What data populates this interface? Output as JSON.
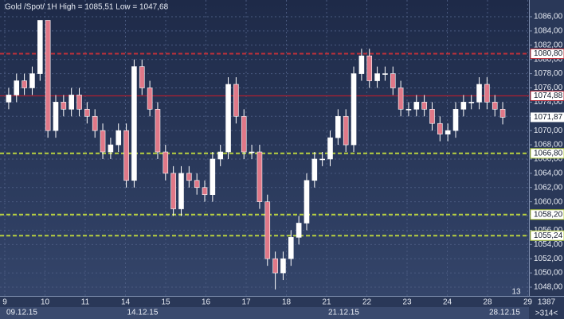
{
  "chart_data": {
    "type": "candlestick",
    "title": "Gold /Spot/ 1H High = 1085,51 Low = 1047,68",
    "series": [
      {
        "name": "Gold",
        "up_color": "#ffffff",
        "down_color": "#e07888",
        "open": [
          1074,
          1075,
          1077,
          1076,
          1078,
          1085.5,
          1070,
          1074,
          1073,
          1075,
          1073,
          1072,
          1070,
          1067,
          1068,
          1070,
          1063,
          1079,
          1076,
          1073,
          1067,
          1064,
          1059,
          1064,
          1063,
          1062,
          1061,
          1066,
          1067,
          1076.5,
          1072,
          1067,
          1067,
          1060,
          1052,
          1050,
          1052,
          1055,
          1057,
          1063,
          1066,
          1066,
          1069,
          1072,
          1068,
          1078,
          1080.5,
          1077,
          1078,
          1078,
          1076,
          1073,
          1073,
          1074,
          1073,
          1071,
          1069.5,
          1070,
          1073,
          1074,
          1074,
          1076.5,
          1074,
          1073
        ],
        "high": [
          1076,
          1078,
          1078,
          1079,
          1085.51,
          1085.51,
          1075,
          1075,
          1076,
          1076,
          1074,
          1073,
          1071,
          1069,
          1071,
          1071,
          1080,
          1080,
          1077,
          1074,
          1068,
          1065,
          1065,
          1065,
          1064,
          1063,
          1067,
          1068,
          1077.5,
          1077.5,
          1073,
          1068,
          1068,
          1061,
          1053,
          1053,
          1056,
          1058,
          1064,
          1067,
          1067,
          1070,
          1073,
          1073,
          1079,
          1081.5,
          1081.5,
          1079,
          1079,
          1079,
          1077,
          1074,
          1075,
          1075,
          1074,
          1072,
          1071,
          1074,
          1075,
          1075,
          1077.5,
          1077.5,
          1075,
          1074
        ],
        "low": [
          1073,
          1074,
          1075,
          1075,
          1077,
          1069,
          1069,
          1072,
          1072,
          1072,
          1071,
          1069,
          1066,
          1066,
          1067,
          1062,
          1062,
          1075,
          1072,
          1066,
          1063,
          1058,
          1058,
          1062,
          1061,
          1060,
          1060,
          1065,
          1066,
          1071,
          1066,
          1066,
          1059,
          1051,
          1047.68,
          1049,
          1051,
          1054,
          1056,
          1062,
          1065,
          1065,
          1068,
          1067,
          1067,
          1077,
          1076,
          1076,
          1077,
          1075,
          1072,
          1072,
          1072,
          1072,
          1070,
          1068.5,
          1068.5,
          1069,
          1072,
          1073,
          1073,
          1073,
          1072,
          1070.87
        ],
        "close": [
          1075,
          1077,
          1076,
          1078,
          1085.5,
          1070,
          1074,
          1073,
          1075,
          1073,
          1072,
          1070,
          1067,
          1068,
          1070,
          1063,
          1079,
          1076,
          1073,
          1067,
          1064,
          1059,
          1064,
          1063,
          1062,
          1061,
          1066,
          1067,
          1076.5,
          1072,
          1067,
          1067,
          1060,
          1052,
          1050,
          1052,
          1055,
          1057,
          1063,
          1066,
          1066,
          1069,
          1072,
          1068,
          1078,
          1080.5,
          1077,
          1078,
          1078,
          1076,
          1073,
          1073,
          1074,
          1073,
          1071,
          1069.5,
          1070,
          1073,
          1074,
          1074,
          1076.5,
          1074,
          1073,
          1071.87
        ]
      }
    ],
    "ylim": [
      1046.77,
      1088.35
    ],
    "yticks": [
      {
        "value": 1048,
        "label": "1048,00"
      },
      {
        "value": 1050,
        "label": "1050,00"
      },
      {
        "value": 1052,
        "label": "1052,00"
      },
      {
        "value": 1054,
        "label": "1054,00"
      },
      {
        "value": 1056,
        "label": "1056,00"
      },
      {
        "value": 1058,
        "label": "1058,00"
      },
      {
        "value": 1060,
        "label": "1060,00"
      },
      {
        "value": 1062,
        "label": "1062,00"
      },
      {
        "value": 1064,
        "label": "1064,00"
      },
      {
        "value": 1066,
        "label": "1066,00"
      },
      {
        "value": 1068,
        "label": "1068,00"
      },
      {
        "value": 1070,
        "label": "1070,00"
      },
      {
        "value": 1072,
        "label": "1072,00"
      },
      {
        "value": 1074,
        "label": "1074,00"
      },
      {
        "value": 1076,
        "label": "1076,00"
      },
      {
        "value": 1078,
        "label": "1078,00"
      },
      {
        "value": 1080,
        "label": "1080,00"
      },
      {
        "value": 1082,
        "label": "1082,00"
      },
      {
        "value": 1084,
        "label": "1084,00"
      },
      {
        "value": 1086,
        "label": "1086,00"
      }
    ],
    "levels": [
      {
        "value": 1080.8,
        "label": "1080,80",
        "color": "#c0303a",
        "dashed": true
      },
      {
        "value": 1074.88,
        "label": "1074,88",
        "color": "#b02030",
        "dashed": false
      },
      {
        "value": 1066.8,
        "label": "1066,80",
        "color": "#b8d040",
        "dashed": true
      },
      {
        "value": 1058.2,
        "label": "1058,20",
        "color": "#b8d040",
        "dashed": true
      },
      {
        "value": 1055.24,
        "label": "1055,24",
        "color": "#b8d040",
        "dashed": true
      }
    ],
    "last_price": {
      "value": 1071.87,
      "label": "1071,87"
    },
    "days": [
      "9",
      "10",
      "11",
      "14",
      "15",
      "16",
      "17",
      "18",
      "21",
      "22",
      "23",
      "24",
      "28",
      "29"
    ],
    "dates": [
      "09.12.15",
      "14.12.15",
      "21.12.15",
      "28.12.15"
    ],
    "grid": true,
    "footer": {
      "count": "13",
      "bars": "1387",
      "zoom": ">314<"
    }
  }
}
